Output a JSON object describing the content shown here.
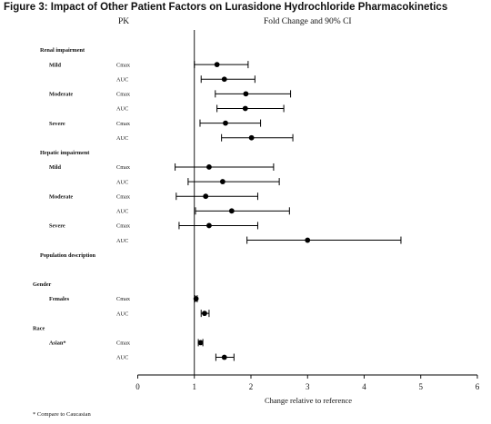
{
  "figure": {
    "title": "Figure 3: Impact of Other Patient Factors on Lurasidone Hydrochloride Pharmacokinetics",
    "footnote": "* Compare to Caucasian"
  },
  "chart_data": {
    "type": "forest",
    "column_header_left": "PK",
    "title": "Fold Change and 90% CI",
    "xlabel": "Change relative to reference",
    "xlim": [
      0,
      6
    ],
    "xticks": [
      0,
      1,
      2,
      3,
      4,
      5,
      6
    ],
    "reference_line": 1,
    "grid": false,
    "rows": [
      {
        "kind": "group",
        "label": "Renal impairment"
      },
      {
        "kind": "data",
        "label": "Mild",
        "metric": "Cmax",
        "estimate": 1.4,
        "ci": [
          1.0,
          1.95
        ]
      },
      {
        "kind": "data",
        "label": "",
        "metric": "AUC",
        "estimate": 1.53,
        "ci": [
          1.12,
          2.07
        ]
      },
      {
        "kind": "data",
        "label": "Moderate",
        "metric": "Cmax",
        "estimate": 1.91,
        "ci": [
          1.37,
          2.7
        ]
      },
      {
        "kind": "data",
        "label": "",
        "metric": "AUC",
        "estimate": 1.9,
        "ci": [
          1.4,
          2.58
        ]
      },
      {
        "kind": "data",
        "label": "Severe",
        "metric": "Cmax",
        "estimate": 1.55,
        "ci": [
          1.1,
          2.17
        ]
      },
      {
        "kind": "data",
        "label": "",
        "metric": "AUC",
        "estimate": 2.01,
        "ci": [
          1.48,
          2.74
        ]
      },
      {
        "kind": "group",
        "label": "Hepatic impairment"
      },
      {
        "kind": "data",
        "label": "Mild",
        "metric": "Cmax",
        "estimate": 1.26,
        "ci": [
          0.66,
          2.4
        ]
      },
      {
        "kind": "data",
        "label": "",
        "metric": "AUC",
        "estimate": 1.5,
        "ci": [
          0.89,
          2.5
        ]
      },
      {
        "kind": "data",
        "label": "Moderate",
        "metric": "Cmax",
        "estimate": 1.2,
        "ci": [
          0.68,
          2.12
        ]
      },
      {
        "kind": "data",
        "label": "",
        "metric": "AUC",
        "estimate": 1.66,
        "ci": [
          1.02,
          2.68
        ]
      },
      {
        "kind": "data",
        "label": "Severe",
        "metric": "Cmax",
        "estimate": 1.26,
        "ci": [
          0.73,
          2.12
        ]
      },
      {
        "kind": "data",
        "label": "",
        "metric": "AUC",
        "estimate": 3.0,
        "ci": [
          1.93,
          4.65
        ]
      },
      {
        "kind": "group",
        "label": "Population description"
      },
      {
        "kind": "blank"
      },
      {
        "kind": "subgroup",
        "label": "Gender"
      },
      {
        "kind": "data",
        "label": "Females",
        "metric": "Cmax",
        "estimate": 1.03,
        "ci": [
          1.01,
          1.05
        ]
      },
      {
        "kind": "data",
        "label": "",
        "metric": "AUC",
        "estimate": 1.18,
        "ci": [
          1.12,
          1.26
        ]
      },
      {
        "kind": "subgroup",
        "label": "Race"
      },
      {
        "kind": "data",
        "label": "Asian*",
        "metric": "Cmax",
        "estimate": 1.11,
        "ci": [
          1.07,
          1.15
        ]
      },
      {
        "kind": "data",
        "label": "",
        "metric": "AUC",
        "estimate": 1.53,
        "ci": [
          1.38,
          1.7
        ]
      }
    ]
  }
}
